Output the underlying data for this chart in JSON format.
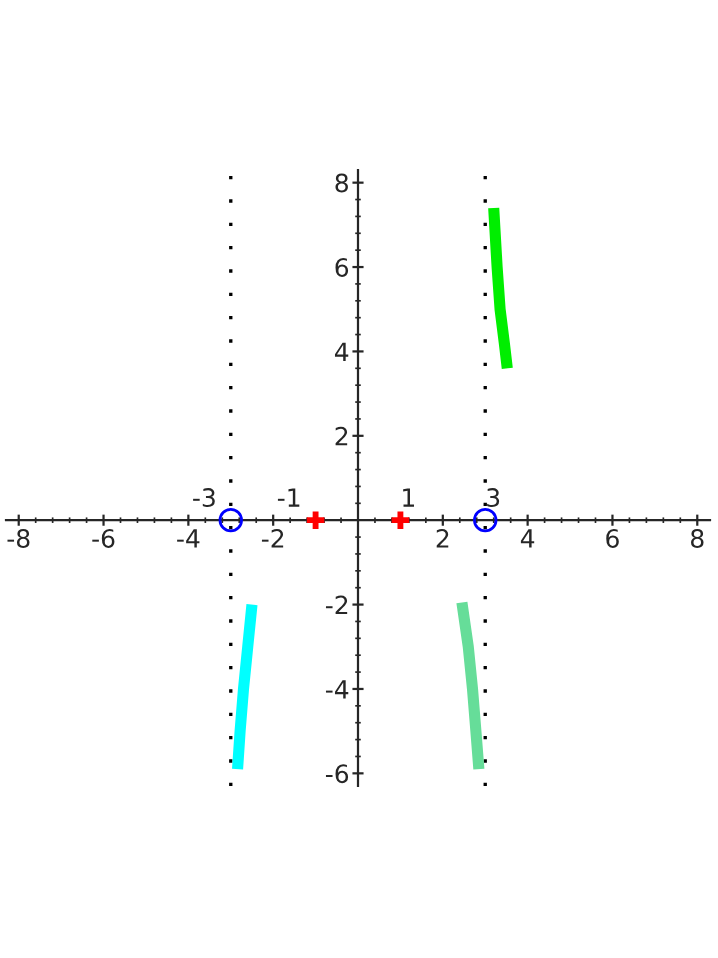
{
  "chart_data": {
    "type": "line",
    "xlim": [
      -8.3,
      8.3
    ],
    "ylim": [
      -6.3,
      8.3
    ],
    "xticks": [
      -8,
      -6,
      -4,
      -2,
      2,
      4,
      6,
      8
    ],
    "yticks": [
      -6,
      -4,
      -2,
      2,
      4,
      6,
      8
    ],
    "grid": false,
    "legend": false,
    "series": [
      {
        "color": "#00ee00",
        "x": [
          3.2,
          3.28,
          3.35,
          3.45,
          3.52
        ],
        "values": [
          7.4,
          6,
          5,
          4.2,
          3.6
        ]
      },
      {
        "color": "#00ffff",
        "x": [
          -2.5,
          -2.6,
          -2.7,
          -2.78,
          -2.84
        ],
        "values": [
          -2,
          -3,
          -4,
          -5,
          -5.9
        ]
      },
      {
        "color": "#66dd99",
        "x": [
          2.45,
          2.6,
          2.7,
          2.78,
          2.85
        ],
        "values": [
          -1.95,
          -3,
          -4,
          -5,
          -5.9
        ]
      },
      {
        "type": "scatter",
        "color": "#0000ff",
        "marker": "circle",
        "x": [
          -3,
          3
        ],
        "values": [
          0,
          0
        ]
      },
      {
        "type": "scatter",
        "color": "#ff0000",
        "marker": "cross",
        "x": [
          -1,
          1
        ],
        "values": [
          0,
          0
        ]
      }
    ],
    "ref_lines": [
      {
        "axis": "x",
        "value": -3,
        "color": "#000000",
        "line_style": "dotted"
      },
      {
        "axis": "x",
        "value": 3,
        "color": "#000000",
        "line_style": "dotted"
      }
    ],
    "annotations": [
      {
        "text": "-3",
        "x": -3,
        "y": 0
      },
      {
        "text": "-1",
        "x": -1,
        "y": 0
      },
      {
        "text": "1",
        "x": 1,
        "y": 0
      },
      {
        "text": "3",
        "x": 3,
        "y": 0
      }
    ]
  }
}
